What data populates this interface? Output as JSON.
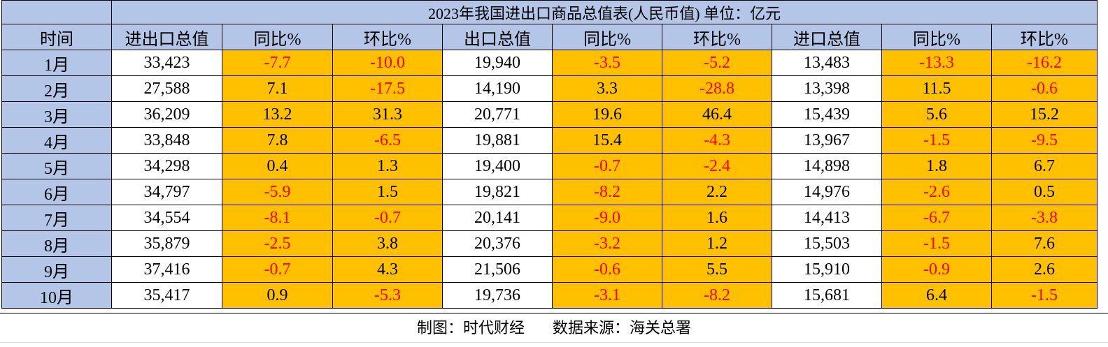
{
  "table": {
    "title": "2023年我国进出口商品总值表(人民币值)  单位：亿元",
    "headers": [
      "时间",
      "进出口总值",
      "同比%",
      "环比%",
      "出口总值",
      "同比%",
      "环比%",
      "进口总值",
      "同比%",
      "环比%"
    ],
    "rows": [
      {
        "month": "1月",
        "total": "33,423",
        "total_yoy": "-7.7",
        "total_mom": "-10.0",
        "export": "19,940",
        "export_yoy": "-3.5",
        "export_mom": "-5.2",
        "import": "13,483",
        "import_yoy": "-13.3",
        "import_mom": "-16.2"
      },
      {
        "month": "2月",
        "total": "27,588",
        "total_yoy": "7.1",
        "total_mom": "-17.5",
        "export": "14,190",
        "export_yoy": "3.3",
        "export_mom": "-28.8",
        "import": "13,398",
        "import_yoy": "11.5",
        "import_mom": "-0.6"
      },
      {
        "month": "3月",
        "total": "36,209",
        "total_yoy": "13.2",
        "total_mom": "31.3",
        "export": "20,771",
        "export_yoy": "19.6",
        "export_mom": "46.4",
        "import": "15,439",
        "import_yoy": "5.6",
        "import_mom": "15.2"
      },
      {
        "month": "4月",
        "total": "33,848",
        "total_yoy": "7.8",
        "total_mom": "-6.5",
        "export": "19,881",
        "export_yoy": "15.4",
        "export_mom": "-4.3",
        "import": "13,967",
        "import_yoy": "-1.5",
        "import_mom": "-9.5"
      },
      {
        "month": "5月",
        "total": "34,298",
        "total_yoy": "0.4",
        "total_mom": "1.3",
        "export": "19,400",
        "export_yoy": "-0.7",
        "export_mom": "-2.4",
        "import": "14,898",
        "import_yoy": "1.8",
        "import_mom": "6.7"
      },
      {
        "month": "6月",
        "total": "34,797",
        "total_yoy": "-5.9",
        "total_mom": "1.5",
        "export": "19,821",
        "export_yoy": "-8.2",
        "export_mom": "2.2",
        "import": "14,976",
        "import_yoy": "-2.6",
        "import_mom": "0.5"
      },
      {
        "month": "7月",
        "total": "34,554",
        "total_yoy": "-8.1",
        "total_mom": "-0.7",
        "export": "20,141",
        "export_yoy": "-9.0",
        "export_mom": "1.6",
        "import": "14,413",
        "import_yoy": "-6.7",
        "import_mom": "-3.8"
      },
      {
        "month": "8月",
        "total": "35,879",
        "total_yoy": "-2.5",
        "total_mom": "3.8",
        "export": "20,376",
        "export_yoy": "-3.2",
        "export_mom": "1.2",
        "import": "15,503",
        "import_yoy": "-1.5",
        "import_mom": "7.6"
      },
      {
        "month": "9月",
        "total": "37,416",
        "total_yoy": "-0.7",
        "total_mom": "4.3",
        "export": "21,506",
        "export_yoy": "-0.6",
        "export_mom": "5.5",
        "import": "15,910",
        "import_yoy": "-0.9",
        "import_mom": "2.6"
      },
      {
        "month": "10月",
        "total": "35,417",
        "total_yoy": "0.9",
        "total_mom": "-5.3",
        "export": "19,736",
        "export_yoy": "-3.1",
        "export_mom": "-8.2",
        "import": "15,681",
        "import_yoy": "6.4",
        "import_mom": "-1.5"
      }
    ]
  },
  "footer": {
    "credit": "制图：时代财经",
    "source": "数据来源：海关总署"
  },
  "colors": {
    "header_bg": "#b4c6e7",
    "pct_bg": "#ffc000",
    "negative_text": "#ff0000",
    "positive_text": "#000000"
  }
}
